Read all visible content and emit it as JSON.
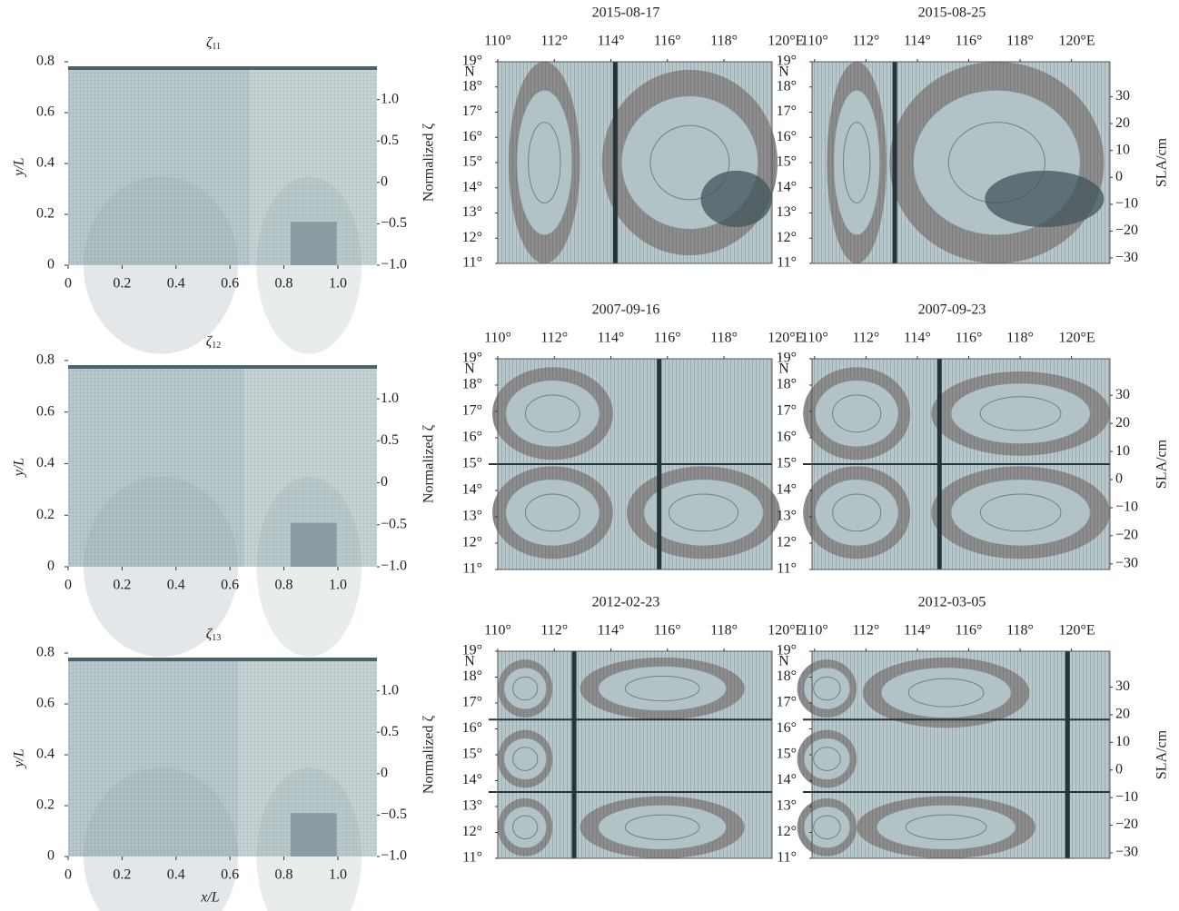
{
  "chart_data": [
    {
      "type": "heatmap",
      "title": "ζ",
      "title_subscript": "11",
      "ylabel": "y/L",
      "xlim": [
        0,
        1.145
      ],
      "ylim": [
        0,
        0.775
      ],
      "xticks": [
        0,
        0.2,
        0.4,
        0.6,
        0.8,
        {
          "value": 1,
          "label": "1.0"
        }
      ],
      "yticks": [
        0,
        0.2,
        0.4,
        0.6,
        0.8
      ],
      "y2lim": [
        -1,
        1.38
      ],
      "y2ticks": [
        {
          "value": -1,
          "label": "−1.0"
        },
        {
          "value": -0.5,
          "label": "−0.5"
        },
        0,
        0.5,
        {
          "value": 1,
          "label": "1.0"
        }
      ]
    },
    {
      "type": "heatmap",
      "title": "ζ",
      "title_subscript": "12",
      "ylabel": "y/L",
      "xlim": [
        0,
        1.145
      ],
      "ylim": [
        0,
        0.775
      ],
      "xticks": [
        0,
        0.2,
        0.4,
        0.6,
        0.8,
        {
          "value": 1,
          "label": "1.0"
        }
      ],
      "yticks": [
        0,
        0.2,
        0.4,
        0.6,
        0.8
      ],
      "y2lim": [
        -1,
        1.38
      ],
      "y2ticks": [
        {
          "value": -1,
          "label": "−1.0"
        },
        {
          "value": -0.5,
          "label": "−0.5"
        },
        0,
        0.5,
        {
          "value": 1,
          "label": "1.0"
        }
      ]
    },
    {
      "type": "heatmap",
      "title": "ζ",
      "title_subscript": "13",
      "ylabel": "y/L",
      "xlabel": "x/L",
      "xlim": [
        0,
        1.145
      ],
      "ylim": [
        0,
        0.775
      ],
      "xticks": [
        0,
        0.2,
        0.4,
        0.6,
        0.8,
        {
          "value": 1,
          "label": "1.0"
        }
      ],
      "yticks": [
        0,
        0.2,
        0.4,
        0.6,
        0.8
      ],
      "y2lim": [
        -1,
        1.38
      ],
      "y2ticks": [
        {
          "value": -1,
          "label": "−1.0"
        },
        {
          "value": -0.5,
          "label": "−0.5"
        },
        0,
        0.5,
        {
          "value": 1,
          "label": "1.0"
        }
      ]
    },
    {
      "type": "map",
      "title": "2015-08-17",
      "ylabel": "Normalized ζ",
      "xlim": [
        110,
        119.7
      ],
      "ylim": [
        11,
        19
      ],
      "xticks": [
        {
          "value": 110,
          "label": "110°"
        },
        {
          "value": 112,
          "label": "112°"
        },
        {
          "value": 114,
          "label": "114°"
        },
        {
          "value": 116,
          "label": "116°"
        },
        {
          "value": 118,
          "label": "118°"
        },
        {
          "value": 120,
          "label": "120°E"
        }
      ],
      "yticks": [
        {
          "value": 11,
          "label": "11°"
        },
        {
          "value": 12,
          "label": "12°"
        },
        {
          "value": 13,
          "label": "13°"
        },
        {
          "value": 14,
          "label": "14°"
        },
        {
          "value": 15,
          "label": "15°"
        },
        {
          "value": 16,
          "label": "16°"
        },
        {
          "value": 17,
          "label": "17°"
        },
        {
          "value": 18,
          "label": "18°"
        },
        {
          "value": 19,
          "label": "19°"
        }
      ],
      "ytick_suffix": "N"
    },
    {
      "type": "map",
      "title": "2015-08-25",
      "y2label": "SLA/cm",
      "xlim": [
        109.9,
        121.5
      ],
      "ylim": [
        11,
        19
      ],
      "xticks": [
        {
          "value": 110,
          "label": "110°"
        },
        {
          "value": 112,
          "label": "112°"
        },
        {
          "value": 114,
          "label": "114°"
        },
        {
          "value": 116,
          "label": "116°"
        },
        {
          "value": 118,
          "label": "118°"
        },
        {
          "value": 120,
          "label": "120°E"
        }
      ],
      "yticks": [
        {
          "value": 11,
          "label": "11°"
        },
        {
          "value": 12,
          "label": "12°"
        },
        {
          "value": 13,
          "label": "13°"
        },
        {
          "value": 14,
          "label": "14°"
        },
        {
          "value": 15,
          "label": "15°"
        },
        {
          "value": 16,
          "label": "16°"
        },
        {
          "value": 17,
          "label": "17°"
        },
        {
          "value": 18,
          "label": "18°"
        },
        {
          "value": 19,
          "label": "19°"
        }
      ],
      "ytick_suffix": "N",
      "y2lim": [
        -32,
        43
      ],
      "y2ticks": [
        {
          "value": -30,
          "label": "−30"
        },
        {
          "value": -20,
          "label": "−20"
        },
        {
          "value": -10,
          "label": "−10"
        },
        0,
        10,
        20,
        30
      ]
    },
    {
      "type": "map",
      "title": "2007-09-16",
      "ylabel": "Normalized ζ",
      "xlim": [
        110,
        119.7
      ],
      "ylim": [
        11,
        19
      ],
      "xticks": [
        {
          "value": 110,
          "label": "110°"
        },
        {
          "value": 112,
          "label": "112°"
        },
        {
          "value": 114,
          "label": "114°"
        },
        {
          "value": 116,
          "label": "116°"
        },
        {
          "value": 118,
          "label": "118°"
        },
        {
          "value": 120,
          "label": "120°E"
        }
      ],
      "yticks": [
        {
          "value": 11,
          "label": "11°"
        },
        {
          "value": 12,
          "label": "12°"
        },
        {
          "value": 13,
          "label": "13°"
        },
        {
          "value": 14,
          "label": "14°"
        },
        {
          "value": 15,
          "label": "15°"
        },
        {
          "value": 16,
          "label": "16°"
        },
        {
          "value": 17,
          "label": "17°"
        },
        {
          "value": 18,
          "label": "18°"
        },
        {
          "value": 19,
          "label": "19°"
        }
      ],
      "ytick_suffix": "N"
    },
    {
      "type": "map",
      "title": "2007-09-23",
      "y2label": "SLA/cm",
      "xlim": [
        109.9,
        121.5
      ],
      "ylim": [
        11,
        19
      ],
      "xticks": [
        {
          "value": 110,
          "label": "110°"
        },
        {
          "value": 112,
          "label": "112°"
        },
        {
          "value": 114,
          "label": "114°"
        },
        {
          "value": 116,
          "label": "116°"
        },
        {
          "value": 118,
          "label": "118°"
        },
        {
          "value": 120,
          "label": "120°E"
        }
      ],
      "yticks": [
        {
          "value": 11,
          "label": "11°"
        },
        {
          "value": 12,
          "label": "12°"
        },
        {
          "value": 13,
          "label": "13°"
        },
        {
          "value": 14,
          "label": "14°"
        },
        {
          "value": 15,
          "label": "15°"
        },
        {
          "value": 16,
          "label": "16°"
        },
        {
          "value": 17,
          "label": "17°"
        },
        {
          "value": 18,
          "label": "18°"
        },
        {
          "value": 19,
          "label": "19°"
        }
      ],
      "ytick_suffix": "N",
      "y2lim": [
        -32,
        43
      ],
      "y2ticks": [
        {
          "value": -30,
          "label": "−30"
        },
        {
          "value": -20,
          "label": "−20"
        },
        {
          "value": -10,
          "label": "−10"
        },
        0,
        10,
        20,
        30
      ]
    },
    {
      "type": "map",
      "title": "2012-02-23",
      "ylabel": "Normalized ζ",
      "xlim": [
        110,
        119.7
      ],
      "ylim": [
        11,
        19
      ],
      "xticks": [
        {
          "value": 110,
          "label": "110°"
        },
        {
          "value": 112,
          "label": "112°"
        },
        {
          "value": 114,
          "label": "114°"
        },
        {
          "value": 116,
          "label": "116°"
        },
        {
          "value": 118,
          "label": "118°"
        },
        {
          "value": 120,
          "label": "120°E"
        }
      ],
      "yticks": [
        {
          "value": 11,
          "label": "11°"
        },
        {
          "value": 12,
          "label": "12°"
        },
        {
          "value": 13,
          "label": "13°"
        },
        {
          "value": 14,
          "label": "14°"
        },
        {
          "value": 15,
          "label": "15°"
        },
        {
          "value": 16,
          "label": "16°"
        },
        {
          "value": 17,
          "label": "17°"
        },
        {
          "value": 18,
          "label": "18°"
        },
        {
          "value": 19,
          "label": "19°"
        }
      ],
      "ytick_suffix": "N"
    },
    {
      "type": "map",
      "title": "2012-03-05",
      "y2label": "SLA/cm",
      "xlim": [
        109.9,
        121.5
      ],
      "ylim": [
        11,
        19
      ],
      "xticks": [
        {
          "value": 110,
          "label": "110°"
        },
        {
          "value": 112,
          "label": "112°"
        },
        {
          "value": 114,
          "label": "114°"
        },
        {
          "value": 116,
          "label": "116°"
        },
        {
          "value": 118,
          "label": "118°"
        },
        {
          "value": 120,
          "label": "120°E"
        }
      ],
      "yticks": [
        {
          "value": 11,
          "label": "11°"
        },
        {
          "value": 12,
          "label": "12°"
        },
        {
          "value": 13,
          "label": "13°"
        },
        {
          "value": 14,
          "label": "14°"
        },
        {
          "value": 15,
          "label": "15°"
        },
        {
          "value": 16,
          "label": "16°"
        },
        {
          "value": 17,
          "label": "17°"
        },
        {
          "value": 18,
          "label": "18°"
        },
        {
          "value": 19,
          "label": "19°"
        }
      ],
      "ytick_suffix": "N",
      "y2lim": [
        -32,
        43
      ],
      "y2ticks": [
        {
          "value": -30,
          "label": "−30"
        },
        {
          "value": -20,
          "label": "−20"
        },
        {
          "value": -10,
          "label": "−10"
        },
        0,
        10,
        20,
        30
      ]
    }
  ]
}
